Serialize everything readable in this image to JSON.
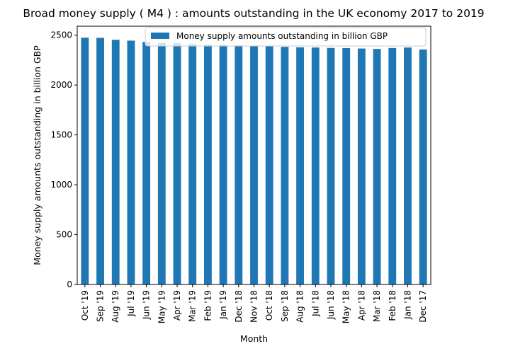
{
  "chart_data": {
    "type": "bar",
    "title": "Broad money supply ( M4 ) : amounts outstanding in the UK economy 2017 to 2019",
    "xlabel": "Month",
    "ylabel": "Money supply amounts outstanding in billion GBP",
    "categories": [
      "Oct '19",
      "Sep '19",
      "Aug '19",
      "Jul '19",
      "Jun '19",
      "May '19",
      "Apr '19",
      "Mar '19",
      "Feb '19",
      "Jan '19",
      "Dec '18",
      "Nov '18",
      "Oct '18",
      "Sep '18",
      "Aug '18",
      "Jul '18",
      "Jun '18",
      "May '18",
      "Apr '18",
      "Mar '18",
      "Feb '18",
      "Jan '18",
      "Dec '17"
    ],
    "series": [
      {
        "name": "Money supply amounts outstanding in billion GBP",
        "values": [
          2475,
          2473,
          2454,
          2445,
          2432,
          2425,
          2421,
          2414,
          2408,
          2404,
          2398,
          2395,
          2392,
          2383,
          2378,
          2376,
          2372,
          2370,
          2366,
          2362,
          2371,
          2376,
          2356
        ],
        "color": "#1f77b4"
      }
    ],
    "ylim": [
      0,
      2590
    ],
    "yticks": [
      0,
      500,
      1000,
      1500,
      2000,
      2500
    ],
    "grid": false,
    "legend_position": "top-right"
  }
}
